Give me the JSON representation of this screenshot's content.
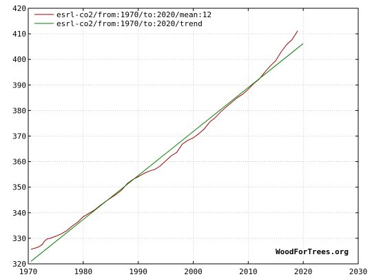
{
  "chart_data": {
    "type": "line",
    "title": "",
    "xlabel": "",
    "ylabel": "",
    "xlim": [
      1970,
      2030
    ],
    "ylim": [
      320,
      420
    ],
    "x_ticks": [
      1970,
      1980,
      1990,
      2000,
      2010,
      2020,
      2030
    ],
    "y_ticks": [
      320,
      330,
      340,
      350,
      360,
      370,
      380,
      390,
      400,
      410,
      420
    ],
    "grid": true,
    "legend_position": "top-left",
    "credit": "WoodForTrees.org",
    "series": [
      {
        "name": "esrl-co2/from:1970/to:2020/mean:12",
        "color": "#a00000",
        "x": [
          1970.5,
          1971.0,
          1971.5,
          1972.0,
          1972.5,
          1973.0,
          1973.5,
          1974.0,
          1975.0,
          1976.0,
          1977.0,
          1978.0,
          1979.0,
          1980.0,
          1981.0,
          1982.0,
          1983.0,
          1984.0,
          1985.0,
          1986.0,
          1987.0,
          1988.0,
          1989.0,
          1990.0,
          1991.0,
          1992.0,
          1993.0,
          1994.0,
          1995.0,
          1996.0,
          1997.0,
          1998.0,
          1999.0,
          2000.0,
          2001.0,
          2002.0,
          2003.0,
          2004.0,
          2005.0,
          2006.0,
          2007.0,
          2008.0,
          2009.0,
          2010.0,
          2011.0,
          2012.0,
          2013.0,
          2014.0,
          2015.0,
          2016.0,
          2017.0,
          2018.0,
          2019.0
        ],
        "y": [
          325.7,
          326.0,
          326.3,
          326.8,
          327.5,
          329.0,
          329.8,
          330.0,
          330.8,
          331.7,
          333.0,
          334.8,
          336.3,
          338.4,
          339.7,
          341.0,
          342.7,
          344.3,
          345.8,
          347.2,
          348.9,
          351.4,
          353.0,
          354.1,
          355.3,
          356.3,
          356.9,
          358.3,
          360.3,
          362.3,
          363.6,
          366.8,
          368.3,
          369.3,
          370.9,
          372.8,
          375.5,
          377.2,
          379.5,
          381.4,
          383.2,
          385.0,
          386.4,
          388.3,
          390.5,
          392.3,
          395.0,
          397.4,
          399.5,
          403.0,
          405.8,
          407.8,
          411.2
        ]
      },
      {
        "name": "esrl-co2/from:1970/to:2020/trend",
        "color": "#008000",
        "x": [
          1970.5,
          2020.0
        ],
        "y": [
          321.0,
          406.2
        ]
      }
    ]
  }
}
